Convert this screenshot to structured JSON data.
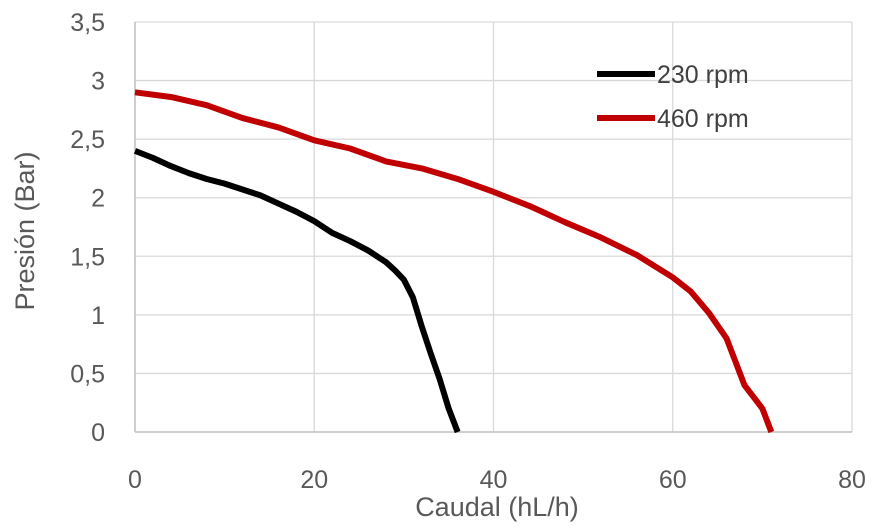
{
  "chart_data": {
    "type": "line",
    "title": "",
    "xlabel": "Caudal (hL/h)",
    "ylabel": "Presión (Bar)",
    "xlim": [
      0,
      80
    ],
    "ylim": [
      0,
      3.5
    ],
    "x_ticks": [
      0,
      20,
      40,
      60,
      80
    ],
    "x_tick_labels": [
      "0",
      "20",
      "40",
      "60",
      "80"
    ],
    "y_ticks": [
      0,
      0.5,
      1,
      1.5,
      2,
      2.5,
      3,
      3.5
    ],
    "y_tick_labels": [
      "0",
      "0,5",
      "1",
      "1,5",
      "2",
      "2,5",
      "3",
      "3,5"
    ],
    "grid": true,
    "legend_position": "top-right",
    "series": [
      {
        "name": "230 rpm",
        "color": "#000000",
        "x": [
          0,
          2,
          4,
          6,
          8,
          10,
          12,
          14,
          16,
          18,
          20,
          22,
          24,
          26,
          28,
          29,
          30,
          31,
          32,
          33,
          34,
          35,
          36
        ],
        "y": [
          2.4,
          2.34,
          2.27,
          2.21,
          2.16,
          2.12,
          2.07,
          2.02,
          1.95,
          1.88,
          1.8,
          1.7,
          1.63,
          1.55,
          1.45,
          1.38,
          1.3,
          1.15,
          0.9,
          0.67,
          0.45,
          0.2,
          0.0
        ]
      },
      {
        "name": "460 rpm",
        "color": "#C00000",
        "x": [
          0,
          4,
          8,
          12,
          16,
          20,
          24,
          28,
          32,
          36,
          40,
          44,
          48,
          52,
          56,
          60,
          62,
          64,
          66,
          67,
          68,
          69,
          70,
          71
        ],
        "y": [
          2.9,
          2.86,
          2.79,
          2.68,
          2.6,
          2.49,
          2.42,
          2.31,
          2.25,
          2.16,
          2.05,
          1.93,
          1.79,
          1.66,
          1.51,
          1.32,
          1.2,
          1.02,
          0.8,
          0.6,
          0.4,
          0.3,
          0.2,
          0.0
        ]
      }
    ]
  }
}
